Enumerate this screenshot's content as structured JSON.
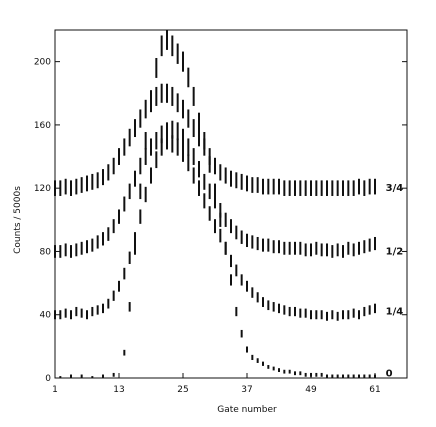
{
  "chart_data": {
    "type": "scatter",
    "xlabel": "Gate number",
    "ylabel": "Counts / 5000s",
    "xlim": [
      1,
      67
    ],
    "ylim": [
      0,
      220
    ],
    "xticks": [
      1,
      13,
      25,
      37,
      49,
      61
    ],
    "yticks": [
      0,
      40,
      80,
      120,
      160,
      200
    ],
    "grid": false,
    "series": [
      {
        "name": "0",
        "x": [
          2,
          4,
          6,
          8,
          10,
          12,
          14,
          15,
          16,
          17,
          18,
          19,
          20,
          21,
          22,
          23,
          24,
          25,
          26,
          27,
          28,
          29,
          30,
          31,
          32,
          33,
          34,
          35,
          36,
          37,
          38,
          39,
          40,
          41,
          42,
          43,
          44,
          45,
          46,
          47,
          48,
          49,
          50,
          51,
          52,
          53,
          54,
          55,
          56,
          57,
          58,
          59,
          60,
          61
        ],
        "y": [
          0,
          1,
          1,
          0,
          1,
          2,
          16,
          45,
          82,
          118,
          150,
          176,
          196,
          210,
          214,
          210,
          205,
          200,
          190,
          178,
          162,
          150,
          135,
          118,
          100,
          82,
          62,
          42,
          28,
          18,
          13,
          11,
          9,
          7,
          6,
          5,
          4,
          4,
          3,
          3,
          2,
          2,
          2,
          2,
          1,
          1,
          1,
          1,
          1,
          1,
          1,
          1,
          1,
          1
        ]
      },
      {
        "name": "1/4",
        "x": [
          1,
          2,
          3,
          4,
          5,
          6,
          7,
          8,
          9,
          10,
          11,
          12,
          13,
          14,
          15,
          16,
          17,
          18,
          19,
          20,
          21,
          22,
          23,
          24,
          25,
          26,
          27,
          28,
          29,
          30,
          31,
          32,
          33,
          34,
          35,
          36,
          37,
          38,
          39,
          40,
          41,
          42,
          43,
          44,
          45,
          46,
          47,
          48,
          49,
          50,
          51,
          52,
          53,
          54,
          55,
          56,
          57,
          58,
          59,
          60,
          61
        ],
        "y": [
          40,
          40,
          41,
          40,
          42,
          41,
          40,
          42,
          43,
          44,
          47,
          52,
          58,
          66,
          76,
          88,
          102,
          116,
          128,
          138,
          146,
          150,
          148,
          146,
          142,
          136,
          128,
          120,
          112,
          104,
          96,
          90,
          82,
          74,
          68,
          62,
          58,
          54,
          51,
          48,
          46,
          45,
          44,
          43,
          42,
          42,
          41,
          41,
          40,
          40,
          40,
          39,
          40,
          39,
          40,
          40,
          41,
          40,
          42,
          43,
          44
        ]
      },
      {
        "name": "1/2",
        "x": [
          1,
          2,
          3,
          4,
          5,
          6,
          7,
          8,
          9,
          10,
          11,
          12,
          13,
          14,
          15,
          16,
          17,
          18,
          19,
          20,
          21,
          22,
          23,
          24,
          25,
          26,
          27,
          28,
          29,
          30,
          31,
          32,
          33,
          34,
          35,
          36,
          37,
          38,
          39,
          40,
          41,
          42,
          43,
          44,
          45,
          46,
          47,
          48,
          49,
          50,
          51,
          52,
          53,
          54,
          55,
          56,
          57,
          58,
          59,
          60,
          61
        ],
        "y": [
          80,
          80,
          81,
          80,
          81,
          82,
          83,
          84,
          86,
          88,
          91,
          96,
          102,
          110,
          118,
          126,
          134,
          140,
          146,
          150,
          154,
          156,
          157,
          156,
          152,
          146,
          140,
          132,
          124,
          118,
          112,
          106,
          100,
          96,
          92,
          89,
          87,
          86,
          85,
          84,
          84,
          83,
          83,
          82,
          82,
          82,
          82,
          81,
          81,
          82,
          81,
          81,
          80,
          81,
          80,
          82,
          81,
          82,
          83,
          84,
          85
        ]
      },
      {
        "name": "3/4",
        "x": [
          1,
          2,
          3,
          4,
          5,
          6,
          7,
          8,
          9,
          10,
          11,
          12,
          13,
          14,
          15,
          16,
          17,
          18,
          19,
          20,
          21,
          22,
          23,
          24,
          25,
          26,
          27,
          28,
          29,
          30,
          31,
          32,
          33,
          34,
          35,
          36,
          37,
          38,
          39,
          40,
          41,
          42,
          43,
          44,
          45,
          46,
          47,
          48,
          49,
          50,
          51,
          52,
          53,
          54,
          55,
          56,
          57,
          58,
          59,
          60,
          61
        ],
        "y": [
          120,
          120,
          121,
          120,
          121,
          122,
          123,
          124,
          125,
          127,
          130,
          134,
          140,
          146,
          152,
          158,
          164,
          170,
          174,
          178,
          180,
          180,
          178,
          174,
          170,
          164,
          158,
          152,
          146,
          140,
          134,
          130,
          128,
          126,
          125,
          124,
          123,
          122,
          122,
          121,
          121,
          121,
          121,
          120,
          120,
          120,
          120,
          120,
          120,
          120,
          120,
          120,
          120,
          120,
          120,
          120,
          120,
          121,
          120,
          121,
          121
        ]
      }
    ],
    "curve_labels": [
      {
        "text": "3/4",
        "x": 63,
        "y": 120
      },
      {
        "text": "1/2",
        "x": 63,
        "y": 80
      },
      {
        "text": "1/4",
        "x": 63,
        "y": 42
      },
      {
        "text": "0",
        "x": 63,
        "y": 3
      }
    ]
  },
  "colors": {
    "ink": "#111111",
    "background": "#ffffff"
  }
}
